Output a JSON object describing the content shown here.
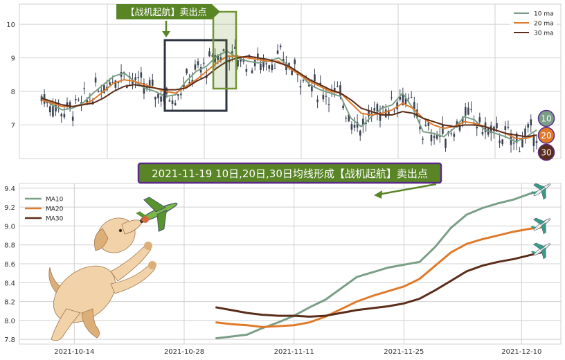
{
  "colors": {
    "ma10": "#7a9e87",
    "ma20": "#e07a2a",
    "ma30": "#5a2c1a",
    "candle": "#3a4252",
    "signal": "#6e9433",
    "annotation_bg": "#5a8526",
    "annotation_border": "#5b2a86",
    "highlight_box": "#2e3340",
    "grid": "#d0d0d0",
    "panel_bg": "#ffffff"
  },
  "annotations": {
    "top_label": "【战机起航】卖出点",
    "middle_banner": "2021-11-19 10日,20日,30日均线形成【战机起航】卖出点"
  },
  "badges": [
    {
      "label": "10",
      "color": "#7a9e87"
    },
    {
      "label": "20",
      "color": "#e07a2a"
    },
    {
      "label": "30",
      "color": "#5a2c1a"
    }
  ],
  "decorations": {
    "dog_icon": "dog-catching-plane-icon",
    "plane_icon": "airplane-icon"
  },
  "chart_data": [
    {
      "type": "line",
      "title": "",
      "xlabel": "",
      "ylabel": "",
      "ylim": [
        6.0,
        10.6
      ],
      "yticks": [
        7,
        8,
        9,
        10
      ],
      "x_start_date": "2021-10-07",
      "candles": "daily OHLC candlesticks drawn in dark slate",
      "legend": {
        "placement": "top-right",
        "entries": [
          "10 ma",
          "20 ma",
          "30 ma"
        ]
      },
      "grid": true,
      "series": [
        {
          "name": "10 ma",
          "color": "#7a9e87",
          "values": [
            7.85,
            7.6,
            7.45,
            7.5,
            7.65,
            7.95,
            8.2,
            8.45,
            8.55,
            8.3,
            8.1,
            8.0,
            7.85,
            7.9,
            8.3,
            8.6,
            8.75,
            9.05,
            9.2,
            9.0,
            8.9,
            8.85,
            8.9,
            9.0,
            8.75,
            8.55,
            8.2,
            8.05,
            7.95,
            7.85,
            7.2,
            6.95,
            7.25,
            7.5,
            7.6,
            7.95,
            7.5,
            6.8,
            6.75,
            6.65,
            6.9,
            7.25,
            7.15,
            6.85,
            6.75,
            6.65,
            6.5,
            6.65,
            6.85
          ]
        },
        {
          "name": "20 ma",
          "color": "#e07a2a",
          "values": [
            7.75,
            7.65,
            7.55,
            7.55,
            7.6,
            7.75,
            8.0,
            8.25,
            8.35,
            8.3,
            8.2,
            8.1,
            8.0,
            7.95,
            8.15,
            8.35,
            8.6,
            8.85,
            9.05,
            9.05,
            9.0,
            8.95,
            8.9,
            8.9,
            8.7,
            8.5,
            8.3,
            8.15,
            8.0,
            7.95,
            7.65,
            7.35,
            7.3,
            7.35,
            7.45,
            7.65,
            7.5,
            7.2,
            7.0,
            6.9,
            6.95,
            7.1,
            7.05,
            6.95,
            6.85,
            6.75,
            6.6,
            6.6,
            6.7
          ]
        },
        {
          "name": "30 ma",
          "color": "#5a2c1a",
          "values": [
            7.8,
            7.7,
            7.6,
            7.55,
            7.6,
            7.65,
            7.8,
            8.0,
            8.15,
            8.2,
            8.15,
            8.1,
            8.05,
            8.05,
            8.1,
            8.3,
            8.45,
            8.7,
            8.9,
            9.0,
            9.05,
            9.0,
            8.95,
            8.85,
            8.75,
            8.55,
            8.35,
            8.2,
            8.05,
            7.95,
            7.75,
            7.5,
            7.4,
            7.3,
            7.3,
            7.4,
            7.35,
            7.2,
            7.1,
            7.0,
            6.95,
            7.0,
            7.0,
            6.95,
            6.85,
            6.75,
            6.7,
            6.65,
            6.7
          ]
        }
      ]
    },
    {
      "type": "line",
      "title": "",
      "xlabel": "",
      "ylabel": "",
      "ylim": [
        7.75,
        9.45
      ],
      "yticks": [
        7.8,
        8.0,
        8.2,
        8.4,
        8.6,
        8.8,
        9.0,
        9.2,
        9.4
      ],
      "x_start_date": "2021-10-07",
      "xticks": [
        "2021-10-14",
        "2021-10-28",
        "2021-11-11",
        "2021-11-25",
        "2021-12-10"
      ],
      "x_end_date": "2021-12-15",
      "legend": {
        "placement": "top-left",
        "entries": [
          "MA10",
          "MA20",
          "MA30"
        ]
      },
      "grid": true,
      "series": [
        {
          "name": "MA10",
          "color": "#7a9e87",
          "x": [
            "2021-11-01",
            "2021-11-03",
            "2021-11-05",
            "2021-11-07",
            "2021-11-09",
            "2021-11-11",
            "2021-11-13",
            "2021-11-15",
            "2021-11-17",
            "2021-11-19",
            "2021-11-21",
            "2021-11-23",
            "2021-11-25",
            "2021-11-27",
            "2021-11-29",
            "2021-12-01",
            "2021-12-03",
            "2021-12-05",
            "2021-12-07",
            "2021-12-09",
            "2021-12-11",
            "2021-12-13"
          ],
          "values": [
            7.81,
            7.83,
            7.85,
            7.92,
            7.98,
            8.05,
            8.14,
            8.22,
            8.34,
            8.46,
            8.51,
            8.56,
            8.59,
            8.62,
            8.78,
            8.98,
            9.12,
            9.19,
            9.24,
            9.28,
            9.34,
            9.38
          ]
        },
        {
          "name": "MA20",
          "color": "#e07a2a",
          "x": [
            "2021-11-01",
            "2021-11-03",
            "2021-11-05",
            "2021-11-07",
            "2021-11-09",
            "2021-11-11",
            "2021-11-13",
            "2021-11-15",
            "2021-11-17",
            "2021-11-19",
            "2021-11-21",
            "2021-11-23",
            "2021-11-25",
            "2021-11-27",
            "2021-11-29",
            "2021-12-01",
            "2021-12-03",
            "2021-12-05",
            "2021-12-07",
            "2021-12-09",
            "2021-12-11",
            "2021-12-13"
          ],
          "values": [
            7.98,
            7.96,
            7.95,
            7.93,
            7.94,
            7.95,
            7.98,
            8.04,
            8.12,
            8.2,
            8.26,
            8.31,
            8.36,
            8.44,
            8.58,
            8.72,
            8.81,
            8.86,
            8.9,
            8.94,
            8.97,
            8.99
          ]
        },
        {
          "name": "MA30",
          "color": "#5a2c1a",
          "x": [
            "2021-11-01",
            "2021-11-03",
            "2021-11-05",
            "2021-11-07",
            "2021-11-09",
            "2021-11-11",
            "2021-11-13",
            "2021-11-15",
            "2021-11-17",
            "2021-11-19",
            "2021-11-21",
            "2021-11-23",
            "2021-11-25",
            "2021-11-27",
            "2021-11-29",
            "2021-12-01",
            "2021-12-03",
            "2021-12-05",
            "2021-12-07",
            "2021-12-09",
            "2021-12-11",
            "2021-12-13"
          ],
          "values": [
            8.14,
            8.11,
            8.08,
            8.06,
            8.05,
            8.05,
            8.04,
            8.05,
            8.08,
            8.11,
            8.13,
            8.15,
            8.18,
            8.23,
            8.32,
            8.42,
            8.52,
            8.58,
            8.62,
            8.65,
            8.69,
            8.73
          ]
        }
      ]
    }
  ]
}
